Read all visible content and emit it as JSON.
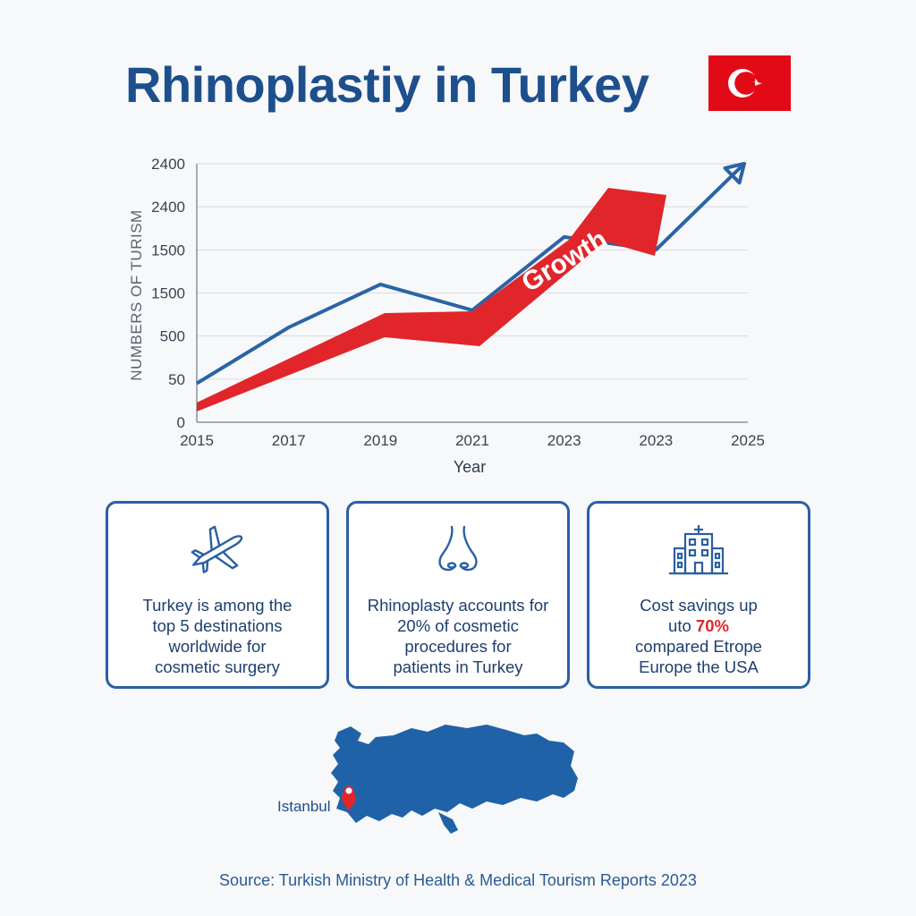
{
  "title": "Rhinoplastiy in Turkey",
  "colors": {
    "primary": "#1d4f8c",
    "line": "#2b63a6",
    "accent": "#e0262b",
    "flag": "#e30a17"
  },
  "chart_data": {
    "type": "line",
    "ylabel": "NUMBERS OF TURISM",
    "xlabel": "Year",
    "x_tick_labels": [
      "2015",
      "2017",
      "2019",
      "2021",
      "2023",
      "2023",
      "2025"
    ],
    "y_tick_labels": [
      "0",
      "50",
      "500",
      "1500",
      "1500",
      "2400",
      "2400"
    ],
    "series": [
      {
        "values": [
          0.9,
          2.2,
          3.2,
          2.6,
          4.3,
          4.0,
          6.0
        ],
        "color": "#2b63a6"
      }
    ],
    "annotations": [
      {
        "text": "Growth",
        "type": "arrow",
        "color": "#e0262b"
      }
    ],
    "grid": true
  },
  "cards": [
    {
      "icon": "airplane-icon",
      "lines": [
        "Turkey is among the",
        "top 5 destinations",
        "worldwide for",
        "cosmetic surgery"
      ]
    },
    {
      "icon": "nose-icon",
      "lines": [
        "Rhinoplasty accounts for",
        "20% of cosmetic",
        "procedures for",
        "patients in Turkey"
      ]
    },
    {
      "icon": "hospital-icon",
      "line1": "Cost savings up",
      "line2_prefix": "uto ",
      "line2_highlight": "70%",
      "line3": "compared Etrope",
      "line4": "Europe the USA"
    }
  ],
  "map": {
    "label": "Istanbul"
  },
  "source": "Source: Turkish Ministry of Health & Medical Tourism Reports 2023"
}
